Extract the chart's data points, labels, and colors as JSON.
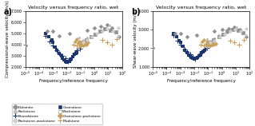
{
  "title_a": "Velocity versus frequency ratio, wet",
  "title_b": "Velocity versus frequency ratio, wet",
  "xlabel": "Frequency/reference frequency",
  "ylabel_a": "Compressional-wave velocity (m/s)",
  "ylabel_b": "Shear-wave velocity (m/s)",
  "xlim_log": [
    -5,
    2
  ],
  "ylim_a": [
    2000,
    7000
  ],
  "ylim_b": [
    1000,
    4000
  ],
  "yticks_a": [
    2000,
    3000,
    4000,
    5000,
    6000,
    7000
  ],
  "yticks_b": [
    1000,
    2000,
    3000,
    4000
  ],
  "data_a": {
    "blue_squares": {
      "x": [
        0.0003,
        0.0005,
        0.0008,
        0.001,
        0.0015,
        0.002,
        0.003,
        0.004,
        0.005,
        0.006,
        0.008,
        0.01,
        0.012,
        0.015,
        0.018,
        0.022,
        0.028,
        0.035,
        0.045,
        0.055
      ],
      "y": [
        5000,
        4700,
        4400,
        4200,
        3800,
        3500,
        3200,
        3000,
        2800,
        2650,
        2500,
        2400,
        2450,
        2500,
        2600,
        2700,
        2900,
        3100,
        3200,
        3300
      ],
      "color": "#1a3570",
      "marker": "s",
      "size": 7,
      "lw": 0
    },
    "blue_plus": {
      "x": [
        0.0003,
        0.0006,
        0.001,
        0.002,
        0.003,
        0.005,
        0.008,
        0.012,
        0.02,
        0.035,
        0.055,
        0.09
      ],
      "y": [
        4800,
        4300,
        3900,
        3500,
        3200,
        2950,
        2750,
        2500,
        2850,
        3200,
        3500,
        3600
      ],
      "color": "#1a3570",
      "marker": "+",
      "size": 15,
      "lw": 0.8
    },
    "gray_diamond": {
      "x": [
        1e-05,
        0.0004,
        0.001,
        0.003,
        0.015,
        0.3,
        1,
        3,
        8,
        20,
        60
      ],
      "y": [
        3900,
        5200,
        5200,
        4800,
        5000,
        5300,
        5500,
        5600,
        5800,
        5500,
        4700
      ],
      "color": "#909090",
      "marker": "D",
      "size": 8,
      "lw": 0
    },
    "gray_circle": {
      "x": [
        0.08,
        0.15,
        0.3,
        0.6,
        1.2,
        2.5,
        5,
        12,
        25,
        55
      ],
      "y": [
        4600,
        4400,
        4600,
        4800,
        5000,
        5100,
        5500,
        5700,
        5200,
        4800
      ],
      "color": "#c0c0c0",
      "marker": "o",
      "size": 5,
      "lw": 0
    },
    "gray_square_open": {
      "x": [
        0.12,
        0.25,
        0.6,
        1.2,
        2.5,
        6,
        15,
        35
      ],
      "y": [
        4200,
        4400,
        4700,
        4900,
        5200,
        5400,
        5300,
        5100
      ],
      "color": "#909090",
      "marker": "s",
      "size": 7,
      "lw": 0.5
    },
    "tan_diamond": {
      "x": [
        0.04,
        0.07,
        0.1,
        0.15,
        0.2,
        0.3,
        0.05,
        0.08,
        0.12,
        0.18,
        0.25,
        0.35
      ],
      "y": [
        4300,
        4100,
        4000,
        3900,
        4000,
        4100,
        4500,
        4300,
        4200,
        4100,
        4000,
        4200
      ],
      "color": "#c8a060",
      "marker": "D",
      "size": 7,
      "lw": 0
    },
    "tan_plus": {
      "x": [
        0.03,
        0.05,
        0.08,
        0.12,
        0.18,
        0.28,
        4,
        8,
        18,
        40
      ],
      "y": [
        4000,
        3900,
        3800,
        4000,
        4100,
        4200,
        4400,
        4200,
        4000,
        4500
      ],
      "color": "#c8a060",
      "marker": "+",
      "size": 15,
      "lw": 0.8
    },
    "gray_diamond2": {
      "x": [
        0.15,
        0.3,
        0.7,
        1.5,
        4,
        9,
        22,
        55
      ],
      "y": [
        4200,
        4400,
        4700,
        5000,
        5200,
        5400,
        5200,
        5500
      ],
      "color": "#d0d0d0",
      "marker": "D",
      "size": 7,
      "lw": 0
    }
  },
  "data_b": {
    "blue_squares": {
      "x": [
        0.0003,
        0.0005,
        0.0008,
        0.001,
        0.0015,
        0.002,
        0.003,
        0.004,
        0.005,
        0.006,
        0.008,
        0.01,
        0.012,
        0.015,
        0.018,
        0.022,
        0.028,
        0.035,
        0.045,
        0.055
      ],
      "y": [
        2800,
        2600,
        2400,
        2300,
        2100,
        1900,
        1750,
        1650,
        1580,
        1520,
        1460,
        1420,
        1450,
        1480,
        1520,
        1570,
        1650,
        1750,
        1820,
        1870
      ],
      "color": "#1a3570",
      "marker": "s",
      "size": 7,
      "lw": 0
    },
    "blue_plus": {
      "x": [
        0.0003,
        0.0006,
        0.001,
        0.002,
        0.003,
        0.005,
        0.008,
        0.012,
        0.02,
        0.035,
        0.055,
        0.09
      ],
      "y": [
        2700,
        2400,
        2200,
        1950,
        1800,
        1680,
        1560,
        1440,
        1600,
        1800,
        1950,
        2000
      ],
      "color": "#1a3570",
      "marker": "+",
      "size": 15,
      "lw": 0.8
    },
    "gray_diamond": {
      "x": [
        1e-05,
        0.0004,
        0.001,
        0.003,
        0.015,
        0.3,
        1,
        3,
        8,
        20,
        60
      ],
      "y": [
        2000,
        2800,
        2800,
        2600,
        2700,
        2900,
        3000,
        3050,
        3150,
        3000,
        2600
      ],
      "color": "#909090",
      "marker": "D",
      "size": 8,
      "lw": 0
    },
    "gray_circle": {
      "x": [
        0.08,
        0.15,
        0.3,
        0.6,
        1.2,
        2.5,
        5,
        12,
        25,
        55
      ],
      "y": [
        2500,
        2400,
        2550,
        2700,
        2800,
        2850,
        3050,
        3150,
        2900,
        2700
      ],
      "color": "#c0c0c0",
      "marker": "o",
      "size": 5,
      "lw": 0
    },
    "gray_square_open": {
      "x": [
        0.12,
        0.25,
        0.6,
        1.2,
        2.5,
        6,
        15,
        35
      ],
      "y": [
        2300,
        2450,
        2600,
        2750,
        2900,
        3000,
        2950,
        2850
      ],
      "color": "#909090",
      "marker": "s",
      "size": 7,
      "lw": 0.5
    },
    "tan_diamond": {
      "x": [
        0.04,
        0.07,
        0.1,
        0.15,
        0.2,
        0.3,
        0.05,
        0.08,
        0.12,
        0.18,
        0.25,
        0.35
      ],
      "y": [
        2350,
        2250,
        2200,
        2150,
        2200,
        2250,
        2450,
        2350,
        2280,
        2220,
        2180,
        2250
      ],
      "color": "#c8a060",
      "marker": "D",
      "size": 7,
      "lw": 0
    },
    "tan_plus": {
      "x": [
        0.03,
        0.05,
        0.08,
        0.12,
        0.18,
        0.28,
        4,
        8,
        18,
        40
      ],
      "y": [
        2200,
        2150,
        2100,
        2200,
        2250,
        2300,
        2400,
        2300,
        2200,
        2450
      ],
      "color": "#c8a060",
      "marker": "+",
      "size": 15,
      "lw": 0.8
    },
    "gray_diamond2": {
      "x": [
        0.15,
        0.3,
        0.7,
        1.5,
        4,
        9,
        22,
        55
      ],
      "y": [
        2300,
        2400,
        2600,
        2750,
        2900,
        3000,
        2900,
        3050
      ],
      "color": "#d0d0d0",
      "marker": "D",
      "size": 7,
      "lw": 0
    }
  },
  "legend": [
    {
      "label": "Dolomite",
      "color": "#909090",
      "marker": "D",
      "mfc": "#909090"
    },
    {
      "label": "Packstone",
      "color": "#c0c0c0",
      "marker": "o",
      "mfc": "#c0c0c0"
    },
    {
      "label": "Boundstone",
      "color": "#1a3570",
      "marker": "+",
      "mfc": "none"
    },
    {
      "label": "Packstone-wackstone",
      "color": "#d0d0d0",
      "marker": "D",
      "mfc": "#d0d0d0"
    },
    {
      "label": "Grainstone",
      "color": "#1a3570",
      "marker": "s",
      "mfc": "#1a3570"
    },
    {
      "label": "Wackstone",
      "color": "#909090",
      "marker": "s",
      "mfc": "none"
    },
    {
      "label": "Grainstone-packstone",
      "color": "#c8a060",
      "marker": "D",
      "mfc": "#c8a060"
    },
    {
      "label": "Mudstone",
      "color": "#c8a060",
      "marker": "+",
      "mfc": "none"
    }
  ]
}
